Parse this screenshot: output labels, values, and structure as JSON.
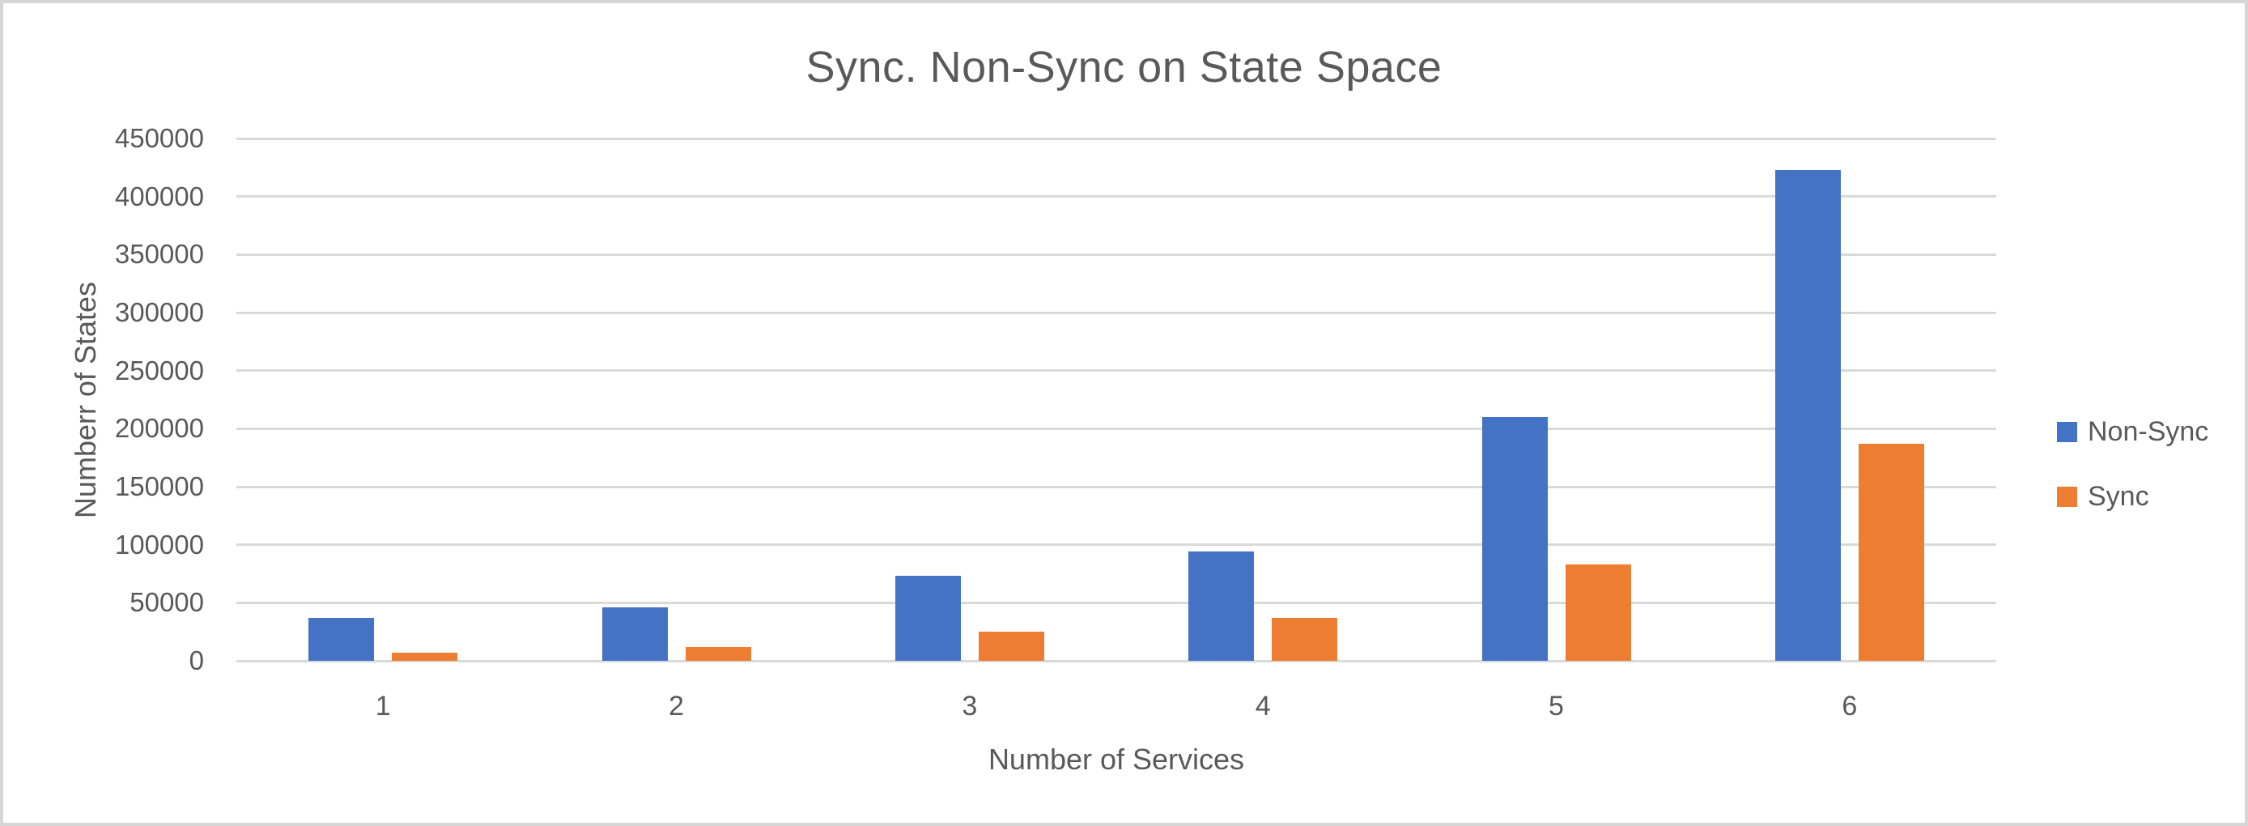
{
  "chart_data": {
    "type": "bar",
    "title": "Sync. Non-Sync on State Space",
    "xlabel": "Number of Services",
    "ylabel": "Numberr of States",
    "categories": [
      "1",
      "2",
      "3",
      "4",
      "5",
      "6"
    ],
    "series": [
      {
        "name": "Non-Sync",
        "color": "#4472C4",
        "values": [
          37000,
          46000,
          73000,
          94000,
          210000,
          423000
        ]
      },
      {
        "name": "Sync",
        "color": "#ED7D31",
        "values": [
          7000,
          12000,
          25000,
          37000,
          83000,
          187000
        ]
      }
    ],
    "ylim": [
      0,
      450000
    ],
    "ytick_step": 50000,
    "yticks": [
      "450000",
      "400000",
      "350000",
      "300000",
      "250000",
      "200000",
      "150000",
      "100000",
      "50000",
      "0"
    ],
    "grid": true,
    "gridline_color": "#D9D9D9",
    "text_color": "#595959",
    "legend_position": "right"
  }
}
